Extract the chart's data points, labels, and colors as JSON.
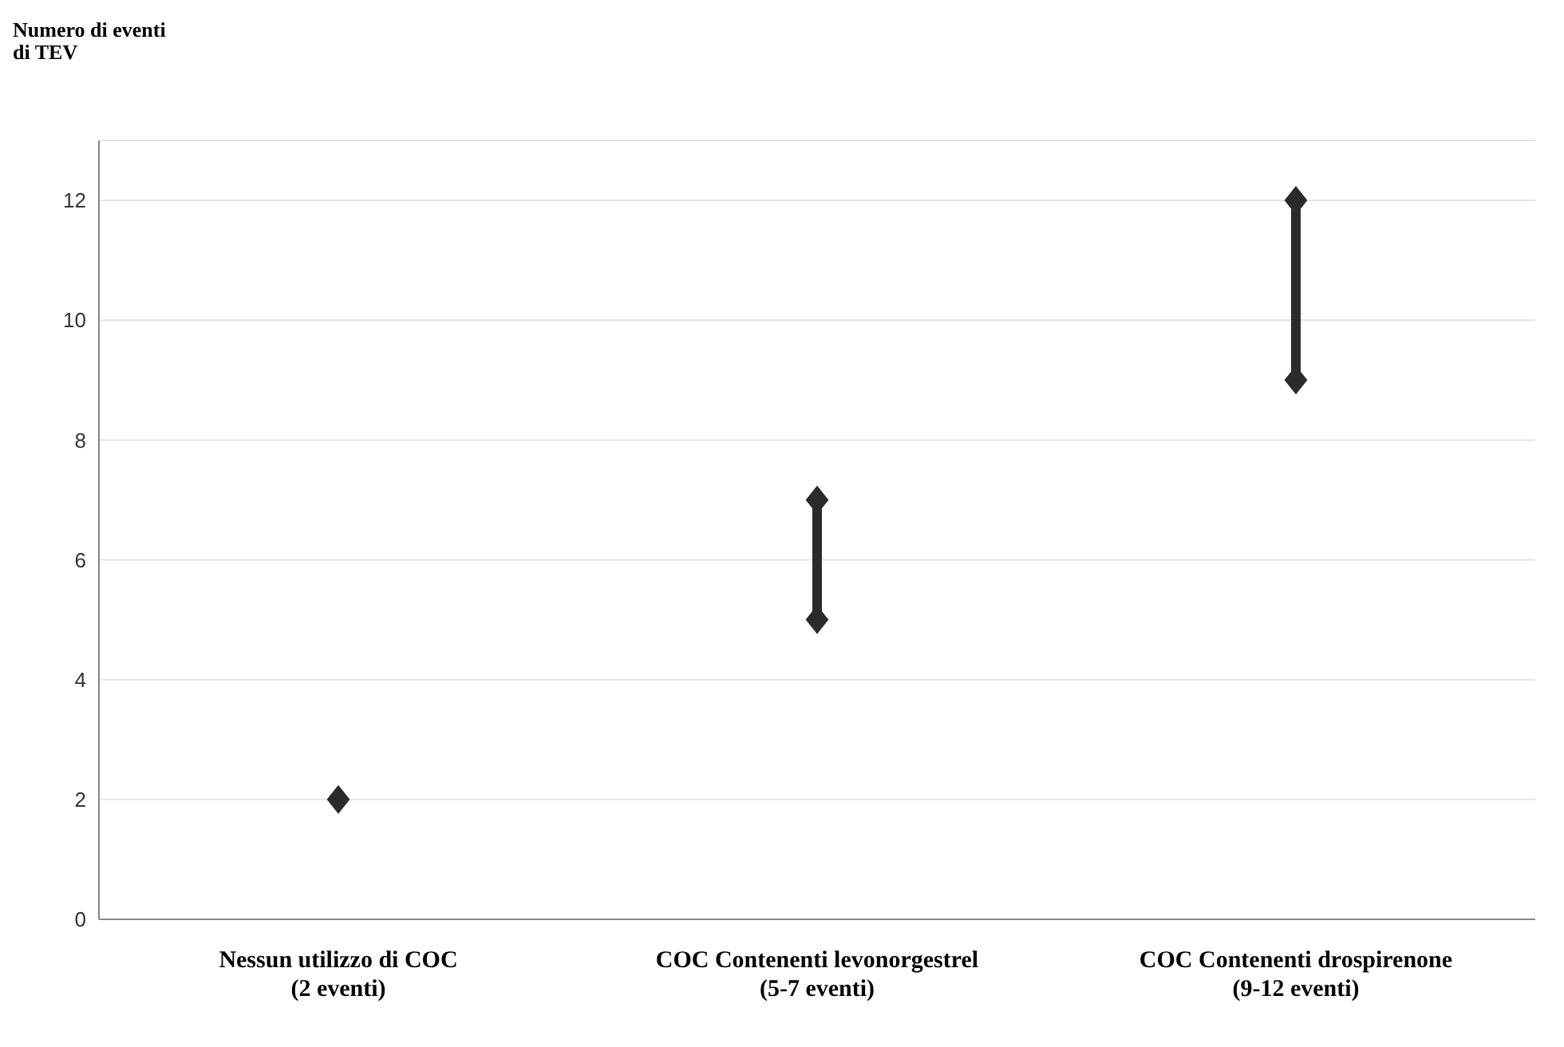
{
  "chart_data": {
    "type": "line",
    "ylabel": "Numero di eventi\ndi TEV",
    "categories": [
      "Nessun utilizzo di COC\n(2 eventi)",
      "COC Contenenti levonorgestrel\n(5-7 eventi)",
      "COC Contenenti drospirenone\n(9-12 eventi)"
    ],
    "series": [
      {
        "color": "#2b2b2b",
        "x": [
          "Nessun utilizzo di COC\n(2 eventi)"
        ],
        "values": [
          2
        ]
      },
      {
        "color": "#2b2b2b",
        "x": [
          "COC Contenenti levonorgestrel\n(5-7 eventi)",
          "COC Contenenti levonorgestrel\n(5-7 eventi)"
        ],
        "values": [
          5,
          7
        ]
      },
      {
        "color": "#2b2b2b",
        "x": [
          "COC Contenenti drospirenone\n(9-12 eventi)",
          "COC Contenenti drospirenone\n(9-12 eventi)"
        ],
        "values": [
          9,
          12
        ]
      }
    ],
    "marker": "diamond",
    "line_style": "solid",
    "ylim": [
      0,
      13
    ],
    "yticks": [
      0,
      2,
      4,
      6,
      8,
      10,
      12
    ],
    "grid": "y"
  }
}
